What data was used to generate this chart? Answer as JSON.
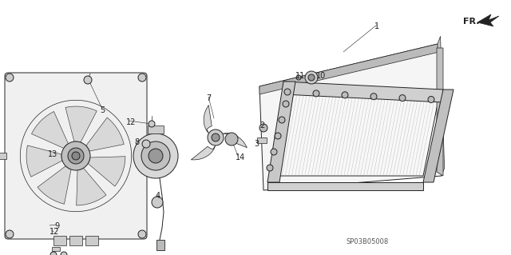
{
  "background_color": "#ffffff",
  "watermark": "SP03B05008",
  "line_color": "#222222",
  "gray_fill": "#d8d8d8",
  "light_gray": "#eeeeee"
}
